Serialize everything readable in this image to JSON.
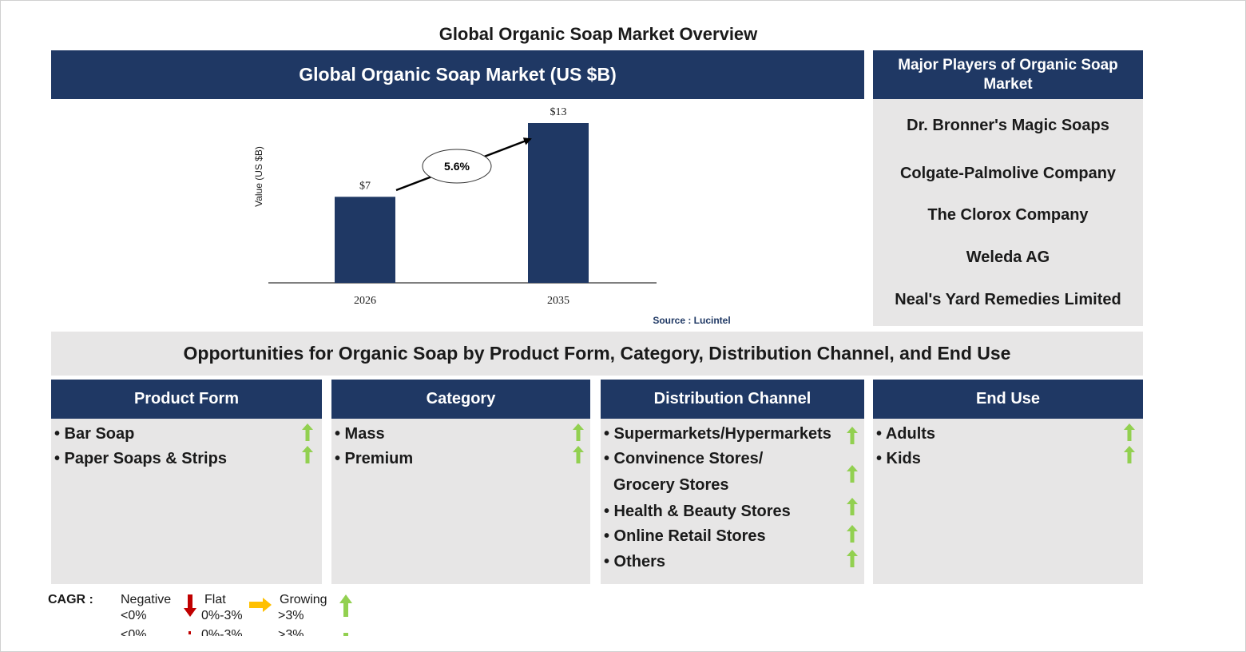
{
  "page_title": "Global Organic Soap Market Overview",
  "chart_header": "Global Organic Soap Market (US $B)",
  "chart_data": {
    "type": "bar",
    "categories": [
      "2026",
      "2035"
    ],
    "values": [
      7,
      13
    ],
    "value_labels": [
      "$7",
      "$13"
    ],
    "ylabel": "Value (US $B)",
    "xlabel": "",
    "ylim": [
      0,
      13
    ],
    "cagr_label": "5.6%",
    "bar_color": "#1f3864",
    "grid": false,
    "source": "Source : Lucintel"
  },
  "players": {
    "header": "Major Players of Organic Soap Market",
    "items": [
      "Dr. Bronner's Magic Soaps",
      "Colgate-Palmolive Company",
      "The Clorox Company",
      "Weleda AG",
      "Neal's Yard Remedies Limited"
    ]
  },
  "opportunities_title": "Opportunities for Organic Soap by Product Form, Category, Distribution Channel, and End Use",
  "segments": [
    {
      "title": "Product Form",
      "items": [
        "• Bar Soap",
        "• Paper Soaps & Strips"
      ]
    },
    {
      "title": "Category",
      "items": [
        "• Mass",
        "• Premium"
      ]
    },
    {
      "title": "Distribution Channel",
      "items": [
        "• Supermarkets/Hypermarkets",
        "• Convinence Stores/",
        "Grocery Stores",
        "• Health & Beauty Stores",
        "• Online Retail Stores",
        "• Others"
      ]
    },
    {
      "title": "End Use",
      "items": [
        "• Adults",
        "• Kids"
      ]
    }
  ],
  "legend": {
    "label": "CAGR  :",
    "negative": {
      "name": "Negative",
      "range": "<0%",
      "color": "#c00000"
    },
    "flat": {
      "name": "Flat",
      "range": "0%-3%",
      "color": "#ffc000"
    },
    "growing": {
      "name": "Growing",
      "range": ">3%",
      "color": "#92d050"
    }
  },
  "icons": {
    "growth": "up-arrow-icon",
    "negative": "down-arrow-icon",
    "flat": "right-arrow-icon"
  }
}
